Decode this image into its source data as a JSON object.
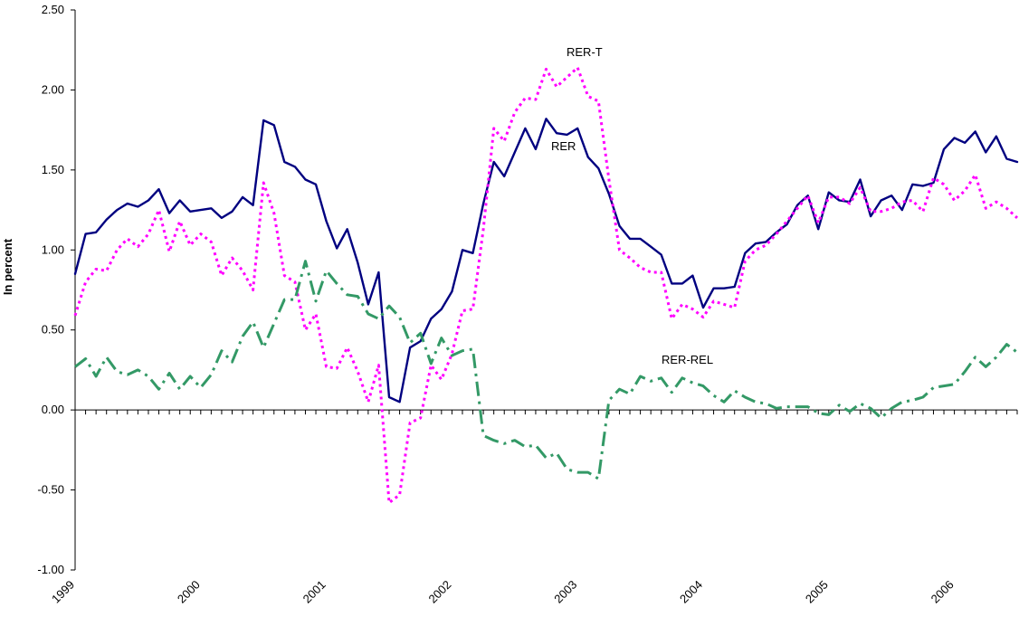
{
  "chart_data": {
    "type": "line",
    "ylabel": "In percent",
    "ylim": [
      -1.0,
      2.5
    ],
    "y_ticks": [
      "2.50",
      "2.00",
      "1.50",
      "1.00",
      "0.50",
      "0.00",
      "-0.50",
      "-1.00"
    ],
    "x_ticks": [
      "1999",
      "2000",
      "2001",
      "2002",
      "2003",
      "2004",
      "2005",
      "2006"
    ],
    "x_start": "1999-01",
    "x_end": "2006-08",
    "annotations": [
      "RER-T",
      "RER",
      "RER-REL"
    ],
    "series": [
      {
        "name": "RER",
        "color": "#000080",
        "style": "solid",
        "values": [
          0.85,
          1.1,
          1.11,
          1.19,
          1.25,
          1.29,
          1.27,
          1.31,
          1.38,
          1.23,
          1.31,
          1.24,
          1.25,
          1.26,
          1.2,
          1.24,
          1.33,
          1.28,
          1.81,
          1.78,
          1.55,
          1.52,
          1.44,
          1.41,
          1.18,
          1.01,
          1.13,
          0.92,
          0.66,
          0.86,
          0.08,
          0.05,
          0.39,
          0.43,
          0.57,
          0.63,
          0.74,
          1.0,
          0.98,
          1.29,
          1.55,
          1.46,
          1.61,
          1.76,
          1.63,
          1.82,
          1.73,
          1.72,
          1.76,
          1.58,
          1.51,
          1.35,
          1.15,
          1.07,
          1.07,
          1.02,
          0.97,
          0.79,
          0.79,
          0.84,
          0.64,
          0.76,
          0.76,
          0.77,
          0.98,
          1.04,
          1.05,
          1.11,
          1.16,
          1.28,
          1.34,
          1.13,
          1.36,
          1.31,
          1.3,
          1.44,
          1.21,
          1.31,
          1.34,
          1.25,
          1.41,
          1.4,
          1.42,
          1.63,
          1.7,
          1.67,
          1.74,
          1.61,
          1.71,
          1.57,
          1.55
        ]
      },
      {
        "name": "RER-T",
        "color": "#ff00ff",
        "style": "dotted",
        "values": [
          0.59,
          0.8,
          0.88,
          0.87,
          1.0,
          1.07,
          1.02,
          1.1,
          1.25,
          0.99,
          1.18,
          1.03,
          1.1,
          1.05,
          0.84,
          0.95,
          0.87,
          0.75,
          1.42,
          1.23,
          0.84,
          0.8,
          0.5,
          0.6,
          0.27,
          0.26,
          0.39,
          0.24,
          0.05,
          0.28,
          -0.58,
          -0.53,
          -0.08,
          -0.05,
          0.28,
          0.19,
          0.35,
          0.62,
          0.63,
          1.13,
          1.76,
          1.68,
          1.86,
          1.95,
          1.94,
          2.13,
          2.02,
          2.08,
          2.14,
          1.96,
          1.93,
          1.44,
          1.0,
          0.95,
          0.89,
          0.86,
          0.86,
          0.57,
          0.66,
          0.63,
          0.58,
          0.68,
          0.66,
          0.64,
          0.93,
          1.0,
          1.03,
          1.1,
          1.18,
          1.26,
          1.34,
          1.17,
          1.33,
          1.33,
          1.29,
          1.39,
          1.24,
          1.24,
          1.26,
          1.3,
          1.31,
          1.24,
          1.45,
          1.41,
          1.31,
          1.37,
          1.47,
          1.26,
          1.3,
          1.26,
          1.2
        ]
      },
      {
        "name": "RER-REL",
        "color": "#339966",
        "style": "dashdot",
        "values": [
          0.27,
          0.32,
          0.21,
          0.33,
          0.24,
          0.22,
          0.25,
          0.21,
          0.13,
          0.23,
          0.13,
          0.21,
          0.14,
          0.22,
          0.37,
          0.3,
          0.46,
          0.55,
          0.39,
          0.54,
          0.69,
          0.69,
          0.93,
          0.68,
          0.87,
          0.79,
          0.72,
          0.71,
          0.6,
          0.57,
          0.65,
          0.58,
          0.42,
          0.48,
          0.29,
          0.45,
          0.34,
          0.37,
          0.38,
          -0.16,
          -0.19,
          -0.21,
          -0.19,
          -0.23,
          -0.22,
          -0.3,
          -0.27,
          -0.37,
          -0.39,
          -0.39,
          -0.43,
          0.06,
          0.13,
          0.1,
          0.21,
          0.18,
          0.2,
          0.11,
          0.2,
          0.17,
          0.15,
          0.09,
          0.05,
          0.12,
          0.08,
          0.05,
          0.04,
          0.01,
          0.02,
          0.02,
          0.02,
          -0.02,
          -0.03,
          0.03,
          -0.01,
          0.04,
          0.01,
          -0.05,
          0.01,
          0.05,
          0.06,
          0.08,
          0.14,
          0.15,
          0.16,
          0.24,
          0.33,
          0.27,
          0.33,
          0.41,
          0.36
        ]
      }
    ]
  }
}
